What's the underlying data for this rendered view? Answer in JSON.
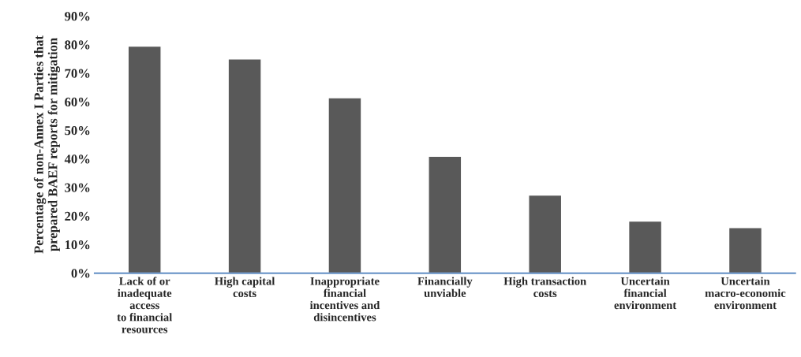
{
  "chart_data": {
    "type": "bar",
    "ylabel": "Percentage of non-Annex I Parties that\nprepared BAEF reports for mitigation",
    "categories": [
      "Lack of or\ninadequate\naccess\nto financial\nresources",
      "High capital\ncosts",
      "Inappropriate\nfinancial\nincentives and\ndisincentives",
      "Financially\nunviable",
      "High transaction\ncosts",
      "Uncertain\nfinancial\nenvironment",
      "Uncertain\nmacro-economic\nenvironment"
    ],
    "values": [
      79.5,
      75,
      61.4,
      40.9,
      27.3,
      18.2,
      15.9
    ],
    "color": "#595959",
    "ylim": [
      0,
      90
    ],
    "yticks": [
      {
        "value": 0,
        "label": "0%"
      },
      {
        "value": 10,
        "label": "10%"
      },
      {
        "value": 20,
        "label": "20%"
      },
      {
        "value": 30,
        "label": "30%"
      },
      {
        "value": 40,
        "label": "40%"
      },
      {
        "value": 50,
        "label": "50%"
      },
      {
        "value": 60,
        "label": "60%"
      },
      {
        "value": 70,
        "label": "70%"
      },
      {
        "value": 80,
        "label": "80%"
      },
      {
        "value": 90,
        "label": "90%"
      }
    ],
    "grid": false
  }
}
